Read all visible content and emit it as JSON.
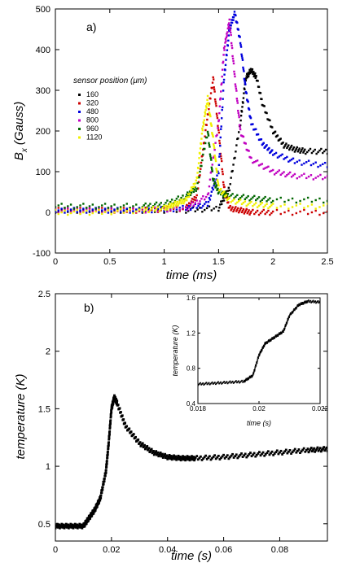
{
  "chart_data": [
    {
      "type": "scatter",
      "panel_label": "a)",
      "xlabel": "time (ms)",
      "ylabel_main": "B",
      "ylabel_sub": "x",
      "ylabel_unit": "(Gauss)",
      "xlim": [
        0,
        2.5
      ],
      "ylim": [
        -100,
        500
      ],
      "xticks": [
        0,
        0.5,
        1,
        1.5,
        2,
        2.5
      ],
      "xtick_labels": [
        "0",
        "0.5",
        "1",
        "1.5",
        "2",
        "2.5"
      ],
      "yticks": [
        -100,
        0,
        100,
        200,
        300,
        400,
        500
      ],
      "ytick_labels": [
        "-100",
        "0",
        "100",
        "200",
        "300",
        "400",
        "500"
      ],
      "legend_title": "sensor position (μm)",
      "legend_position": "left",
      "series": [
        {
          "name": "160",
          "color": "#000000",
          "x": [
            0,
            0.4,
            0.8,
            1.2,
            1.5,
            1.6,
            1.7,
            1.75,
            1.8,
            1.85,
            1.9,
            2.0,
            2.1,
            2.2,
            2.3,
            2.5
          ],
          "y": [
            5,
            5,
            5,
            5,
            10,
            60,
            220,
            330,
            350,
            330,
            270,
            200,
            165,
            155,
            150,
            150
          ]
        },
        {
          "name": "320",
          "color": "#cc0000",
          "x": [
            0,
            0.4,
            0.8,
            1.2,
            1.3,
            1.38,
            1.45,
            1.5,
            1.55,
            1.6,
            1.7,
            1.8,
            2.0,
            2.5
          ],
          "y": [
            5,
            5,
            5,
            10,
            40,
            200,
            330,
            200,
            60,
            10,
            5,
            0,
            0,
            0
          ]
        },
        {
          "name": "480",
          "color": "#0000dd",
          "x": [
            0,
            0.4,
            0.8,
            1.2,
            1.4,
            1.5,
            1.55,
            1.6,
            1.65,
            1.7,
            1.75,
            1.8,
            1.9,
            2.0,
            2.2,
            2.5
          ],
          "y": [
            5,
            5,
            5,
            10,
            20,
            100,
            330,
            450,
            490,
            420,
            300,
            220,
            170,
            145,
            125,
            115
          ]
        },
        {
          "name": "800",
          "color": "#c000c0",
          "x": [
            0,
            0.4,
            0.8,
            1.2,
            1.4,
            1.5,
            1.55,
            1.6,
            1.65,
            1.7,
            1.8,
            2.0,
            2.2,
            2.5
          ],
          "y": [
            5,
            5,
            5,
            10,
            40,
            220,
            400,
            470,
            330,
            200,
            130,
            100,
            90,
            85
          ]
        },
        {
          "name": "960",
          "color": "#006600",
          "x": [
            0,
            0.4,
            0.8,
            1.0,
            1.2,
            1.3,
            1.4,
            1.45,
            1.5,
            1.6,
            1.8,
            2.0,
            2.5
          ],
          "y": [
            15,
            15,
            15,
            20,
            40,
            60,
            200,
            80,
            50,
            40,
            35,
            30,
            30
          ]
        },
        {
          "name": "1120",
          "color": "#f0f000",
          "x": [
            0,
            0.4,
            0.8,
            1.0,
            1.1,
            1.2,
            1.3,
            1.35,
            1.4,
            1.45,
            1.5,
            1.6,
            1.8,
            2.0,
            2.5
          ],
          "y": [
            0,
            0,
            5,
            10,
            20,
            30,
            80,
            200,
            280,
            180,
            60,
            30,
            20,
            15,
            15
          ]
        }
      ]
    },
    {
      "type": "scatter",
      "panel_label": "b)",
      "xlabel": "time (s)",
      "ylabel": "temperature (K)",
      "xlim": [
        0,
        0.097
      ],
      "ylim": [
        0.35,
        2.5
      ],
      "xticks": [
        0,
        0.02,
        0.04,
        0.06,
        0.08
      ],
      "xtick_labels": [
        "0",
        "0.02",
        "0.04",
        "0.06",
        "0.08"
      ],
      "yticks": [
        0.5,
        1,
        1.5,
        2,
        2.5
      ],
      "ytick_labels": [
        "0.5",
        "1",
        "1.5",
        "2",
        "2.5"
      ],
      "series": [
        {
          "name": "",
          "color": "#000000",
          "x": [
            0,
            0.005,
            0.01,
            0.012,
            0.014,
            0.016,
            0.018,
            0.019,
            0.02,
            0.021,
            0.022,
            0.025,
            0.03,
            0.035,
            0.04,
            0.045,
            0.05,
            0.06,
            0.07,
            0.08,
            0.09,
            0.097
          ],
          "y": [
            0.48,
            0.48,
            0.48,
            0.55,
            0.62,
            0.72,
            0.95,
            1.2,
            1.5,
            1.6,
            1.55,
            1.35,
            1.2,
            1.12,
            1.08,
            1.07,
            1.07,
            1.08,
            1.1,
            1.12,
            1.14,
            1.15
          ]
        }
      ],
      "inset": {
        "type": "scatter",
        "xlabel": "time (s)",
        "ylabel": "temperature (K)",
        "xlim": [
          0.018,
          0.022
        ],
        "ylim": [
          0.4,
          1.6
        ],
        "xticks": [
          0.018,
          0.02,
          0.022
        ],
        "xtick_labels": [
          "0.018",
          "0.02",
          "0.022"
        ],
        "yticks": [
          0.4,
          0.8,
          1.2,
          1.6
        ],
        "ytick_labels": [
          "0.4",
          "0.8",
          "1.2",
          "1.6"
        ],
        "series": [
          {
            "name": "",
            "color": "#000000",
            "x": [
              0.018,
              0.0185,
              0.019,
              0.0195,
              0.0198,
              0.02,
              0.0202,
              0.0205,
              0.0208,
              0.021,
              0.0213,
              0.0216,
              0.022
            ],
            "y": [
              0.62,
              0.63,
              0.64,
              0.65,
              0.72,
              0.95,
              1.08,
              1.15,
              1.22,
              1.4,
              1.52,
              1.56,
              1.55
            ]
          }
        ]
      }
    }
  ]
}
